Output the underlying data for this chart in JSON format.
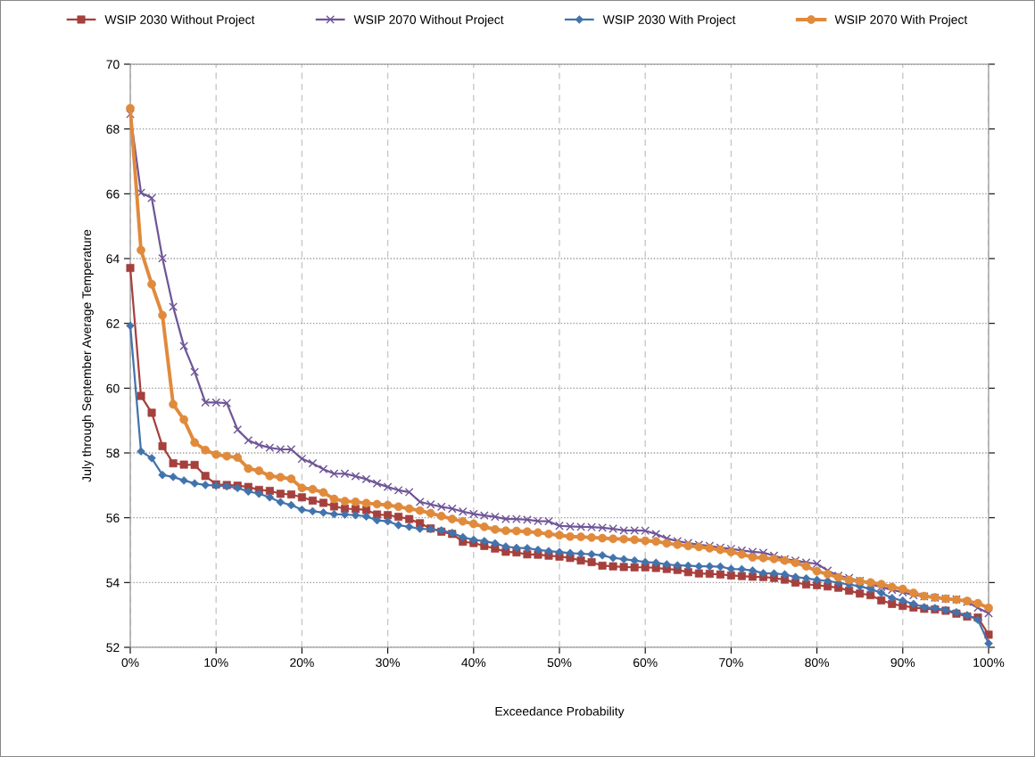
{
  "chart_data": {
    "type": "line",
    "xlabel": "Exceedance Probability",
    "ylabel": "July through September Average Temperature",
    "x": [
      0,
      1.25,
      2.5,
      3.75,
      5,
      6.25,
      7.5,
      8.75,
      10,
      11.25,
      12.5,
      13.75,
      15,
      16.25,
      17.5,
      18.75,
      20,
      21.25,
      22.5,
      23.75,
      25,
      26.25,
      27.5,
      28.75,
      30,
      31.25,
      32.5,
      33.75,
      35,
      36.25,
      37.5,
      38.75,
      40,
      41.25,
      42.5,
      43.75,
      45,
      46.25,
      47.5,
      48.75,
      50,
      51.25,
      52.5,
      53.75,
      55,
      56.25,
      57.5,
      58.75,
      60,
      61.25,
      62.5,
      63.75,
      65,
      66.25,
      67.5,
      68.75,
      70,
      71.25,
      72.5,
      73.75,
      75,
      76.25,
      77.5,
      78.75,
      80,
      81.25,
      82.5,
      83.75,
      85,
      86.25,
      87.5,
      88.75,
      90,
      91.25,
      92.5,
      93.75,
      95,
      96.25,
      97.5,
      98.75,
      100
    ],
    "xlim": [
      0,
      100
    ],
    "ylim": [
      52,
      70
    ],
    "xticks": [
      {
        "value": 0,
        "label": "0%"
      },
      {
        "value": 10,
        "label": "10%"
      },
      {
        "value": 20,
        "label": "20%"
      },
      {
        "value": 30,
        "label": "30%"
      },
      {
        "value": 40,
        "label": "40%"
      },
      {
        "value": 50,
        "label": "50%"
      },
      {
        "value": 60,
        "label": "60%"
      },
      {
        "value": 70,
        "label": "70%"
      },
      {
        "value": 80,
        "label": "80%"
      },
      {
        "value": 90,
        "label": "90%"
      },
      {
        "value": 100,
        "label": "100%"
      }
    ],
    "yticks": [
      52,
      54,
      56,
      58,
      60,
      62,
      64,
      66,
      68,
      70
    ],
    "grid": true,
    "legend": "top",
    "series": [
      {
        "name": "WSIP 2030 Without Project",
        "color": "#a5403d",
        "marker": "square",
        "values": [
          63.71,
          59.76,
          59.24,
          58.21,
          57.68,
          57.64,
          57.63,
          57.29,
          57.03,
          57.01,
          56.99,
          56.95,
          56.86,
          56.83,
          56.74,
          56.72,
          56.63,
          56.53,
          56.46,
          56.35,
          56.28,
          56.27,
          56.24,
          56.1,
          56.08,
          56.03,
          55.96,
          55.83,
          55.67,
          55.57,
          55.5,
          55.26,
          55.22,
          55.13,
          55.05,
          54.95,
          54.93,
          54.87,
          54.86,
          54.83,
          54.8,
          54.76,
          54.68,
          54.63,
          54.52,
          54.5,
          54.48,
          54.47,
          54.47,
          54.45,
          54.42,
          54.39,
          54.32,
          54.28,
          54.27,
          54.25,
          54.22,
          54.2,
          54.18,
          54.17,
          54.14,
          54.09,
          54.0,
          53.94,
          53.92,
          53.88,
          53.84,
          53.75,
          53.66,
          53.61,
          53.45,
          53.34,
          53.28,
          53.23,
          53.19,
          53.17,
          53.13,
          53.04,
          52.95,
          52.92,
          52.39
        ]
      },
      {
        "name": "WSIP 2070 Without Project",
        "color": "#6f5597",
        "marker": "cross",
        "values": [
          68.46,
          66.03,
          65.87,
          64.01,
          62.51,
          61.3,
          60.5,
          59.56,
          59.56,
          59.54,
          58.72,
          58.39,
          58.25,
          58.16,
          58.11,
          58.11,
          57.82,
          57.68,
          57.5,
          57.36,
          57.36,
          57.28,
          57.19,
          57.06,
          56.95,
          56.85,
          56.79,
          56.49,
          56.41,
          56.34,
          56.28,
          56.19,
          56.12,
          56.07,
          56.03,
          55.96,
          55.96,
          55.94,
          55.9,
          55.89,
          55.75,
          55.73,
          55.72,
          55.71,
          55.69,
          55.66,
          55.61,
          55.61,
          55.6,
          55.5,
          55.36,
          55.28,
          55.22,
          55.17,
          55.13,
          55.08,
          55.04,
          54.99,
          54.95,
          54.92,
          54.83,
          54.72,
          54.68,
          54.62,
          54.58,
          54.37,
          54.21,
          54.14,
          54.05,
          53.95,
          53.86,
          53.77,
          53.7,
          53.61,
          53.57,
          53.53,
          53.5,
          53.48,
          53.4,
          53.22,
          53.05
        ]
      },
      {
        "name": "WSIP 2030 With Project",
        "color": "#4273ac",
        "marker": "diamond",
        "values": [
          61.93,
          58.05,
          57.84,
          57.32,
          57.26,
          57.15,
          57.06,
          57.01,
          56.99,
          56.97,
          56.92,
          56.81,
          56.74,
          56.63,
          56.48,
          56.39,
          56.25,
          56.2,
          56.16,
          56.11,
          56.1,
          56.08,
          56.04,
          55.92,
          55.89,
          55.77,
          55.72,
          55.66,
          55.65,
          55.61,
          55.53,
          55.4,
          55.32,
          55.28,
          55.21,
          55.11,
          55.07,
          55.06,
          55.01,
          54.97,
          54.94,
          54.91,
          54.89,
          54.87,
          54.84,
          54.76,
          54.72,
          54.68,
          54.63,
          54.61,
          54.56,
          54.53,
          54.52,
          54.5,
          54.5,
          54.49,
          54.42,
          54.41,
          54.37,
          54.29,
          54.28,
          54.25,
          54.17,
          54.13,
          54.08,
          54.05,
          53.99,
          53.94,
          53.88,
          53.8,
          53.68,
          53.52,
          53.44,
          53.34,
          53.24,
          53.21,
          53.15,
          53.08,
          52.99,
          52.85,
          52.12
        ]
      },
      {
        "name": "WSIP 2070 With Project",
        "color": "#e08a3c",
        "marker": "circle",
        "values": [
          68.64,
          64.26,
          63.21,
          62.25,
          59.5,
          59.03,
          58.32,
          58.09,
          57.95,
          57.9,
          57.86,
          57.52,
          57.45,
          57.29,
          57.25,
          57.2,
          56.92,
          56.88,
          56.78,
          56.58,
          56.51,
          56.49,
          56.45,
          56.42,
          56.39,
          56.34,
          56.28,
          56.22,
          56.14,
          56.05,
          55.96,
          55.89,
          55.81,
          55.72,
          55.64,
          55.6,
          55.59,
          55.57,
          55.54,
          55.5,
          55.46,
          55.42,
          55.41,
          55.39,
          55.37,
          55.35,
          55.34,
          55.32,
          55.29,
          55.27,
          55.21,
          55.17,
          55.13,
          55.1,
          55.06,
          55.01,
          54.94,
          54.87,
          54.78,
          54.76,
          54.73,
          54.68,
          54.61,
          54.5,
          54.35,
          54.26,
          54.16,
          54.08,
          54.04,
          54.0,
          53.95,
          53.86,
          53.8,
          53.68,
          53.58,
          53.54,
          53.5,
          53.47,
          53.43,
          53.36,
          53.22
        ]
      }
    ]
  }
}
